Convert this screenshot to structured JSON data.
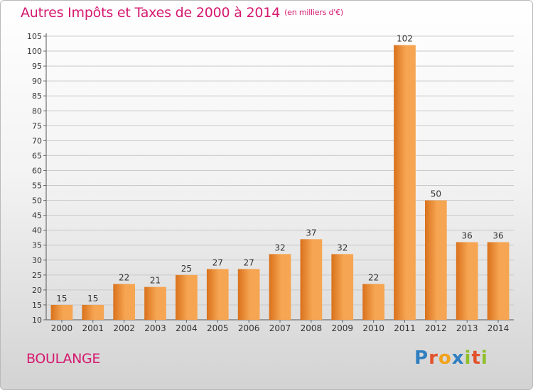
{
  "header": {
    "title": "Autres Impôts et Taxes de 2000 à 2014",
    "unit": "(en milliers d'€)"
  },
  "footer": {
    "commune": "BOULANGE",
    "logo_text": "Proxiti",
    "logo_letters": [
      {
        "ch": "P",
        "color": "#2f7fc1"
      },
      {
        "ch": "r",
        "color": "#e2532c"
      },
      {
        "ch": "o",
        "color": "#f2a21b"
      },
      {
        "ch": "x",
        "color": "#2f7fc1"
      },
      {
        "ch": "i",
        "color": "#8fbf2a"
      },
      {
        "ch": "t",
        "color": "#e2532c"
      },
      {
        "ch": "i",
        "color": "#8fbf2a"
      }
    ]
  },
  "colors": {
    "bar_light": "#f6a552",
    "bar_dark": "#d9711b",
    "title": "#d6196f",
    "grid": "#c9c9c9"
  },
  "chart_data": {
    "type": "bar",
    "categories": [
      "2000",
      "2001",
      "2002",
      "2003",
      "2004",
      "2005",
      "2006",
      "2007",
      "2008",
      "2009",
      "2010",
      "2011",
      "2012",
      "2013",
      "2014"
    ],
    "values": [
      15,
      15,
      22,
      21,
      25,
      27,
      27,
      32,
      37,
      32,
      22,
      102,
      50,
      36,
      36
    ],
    "data_labels": [
      "15",
      "15",
      "22",
      "21",
      "25",
      "27",
      "27",
      "32",
      "37",
      "32",
      "22",
      "102",
      "50",
      "36",
      "36"
    ],
    "title": "Autres Impôts et Taxes de 2000 à 2014",
    "xlabel": "",
    "ylabel": "",
    "ylim": [
      10,
      105
    ],
    "yticks": [
      10,
      15,
      20,
      25,
      30,
      35,
      40,
      45,
      50,
      55,
      60,
      65,
      70,
      75,
      80,
      85,
      90,
      95,
      100,
      105
    ],
    "grid": true,
    "legend": "none"
  }
}
